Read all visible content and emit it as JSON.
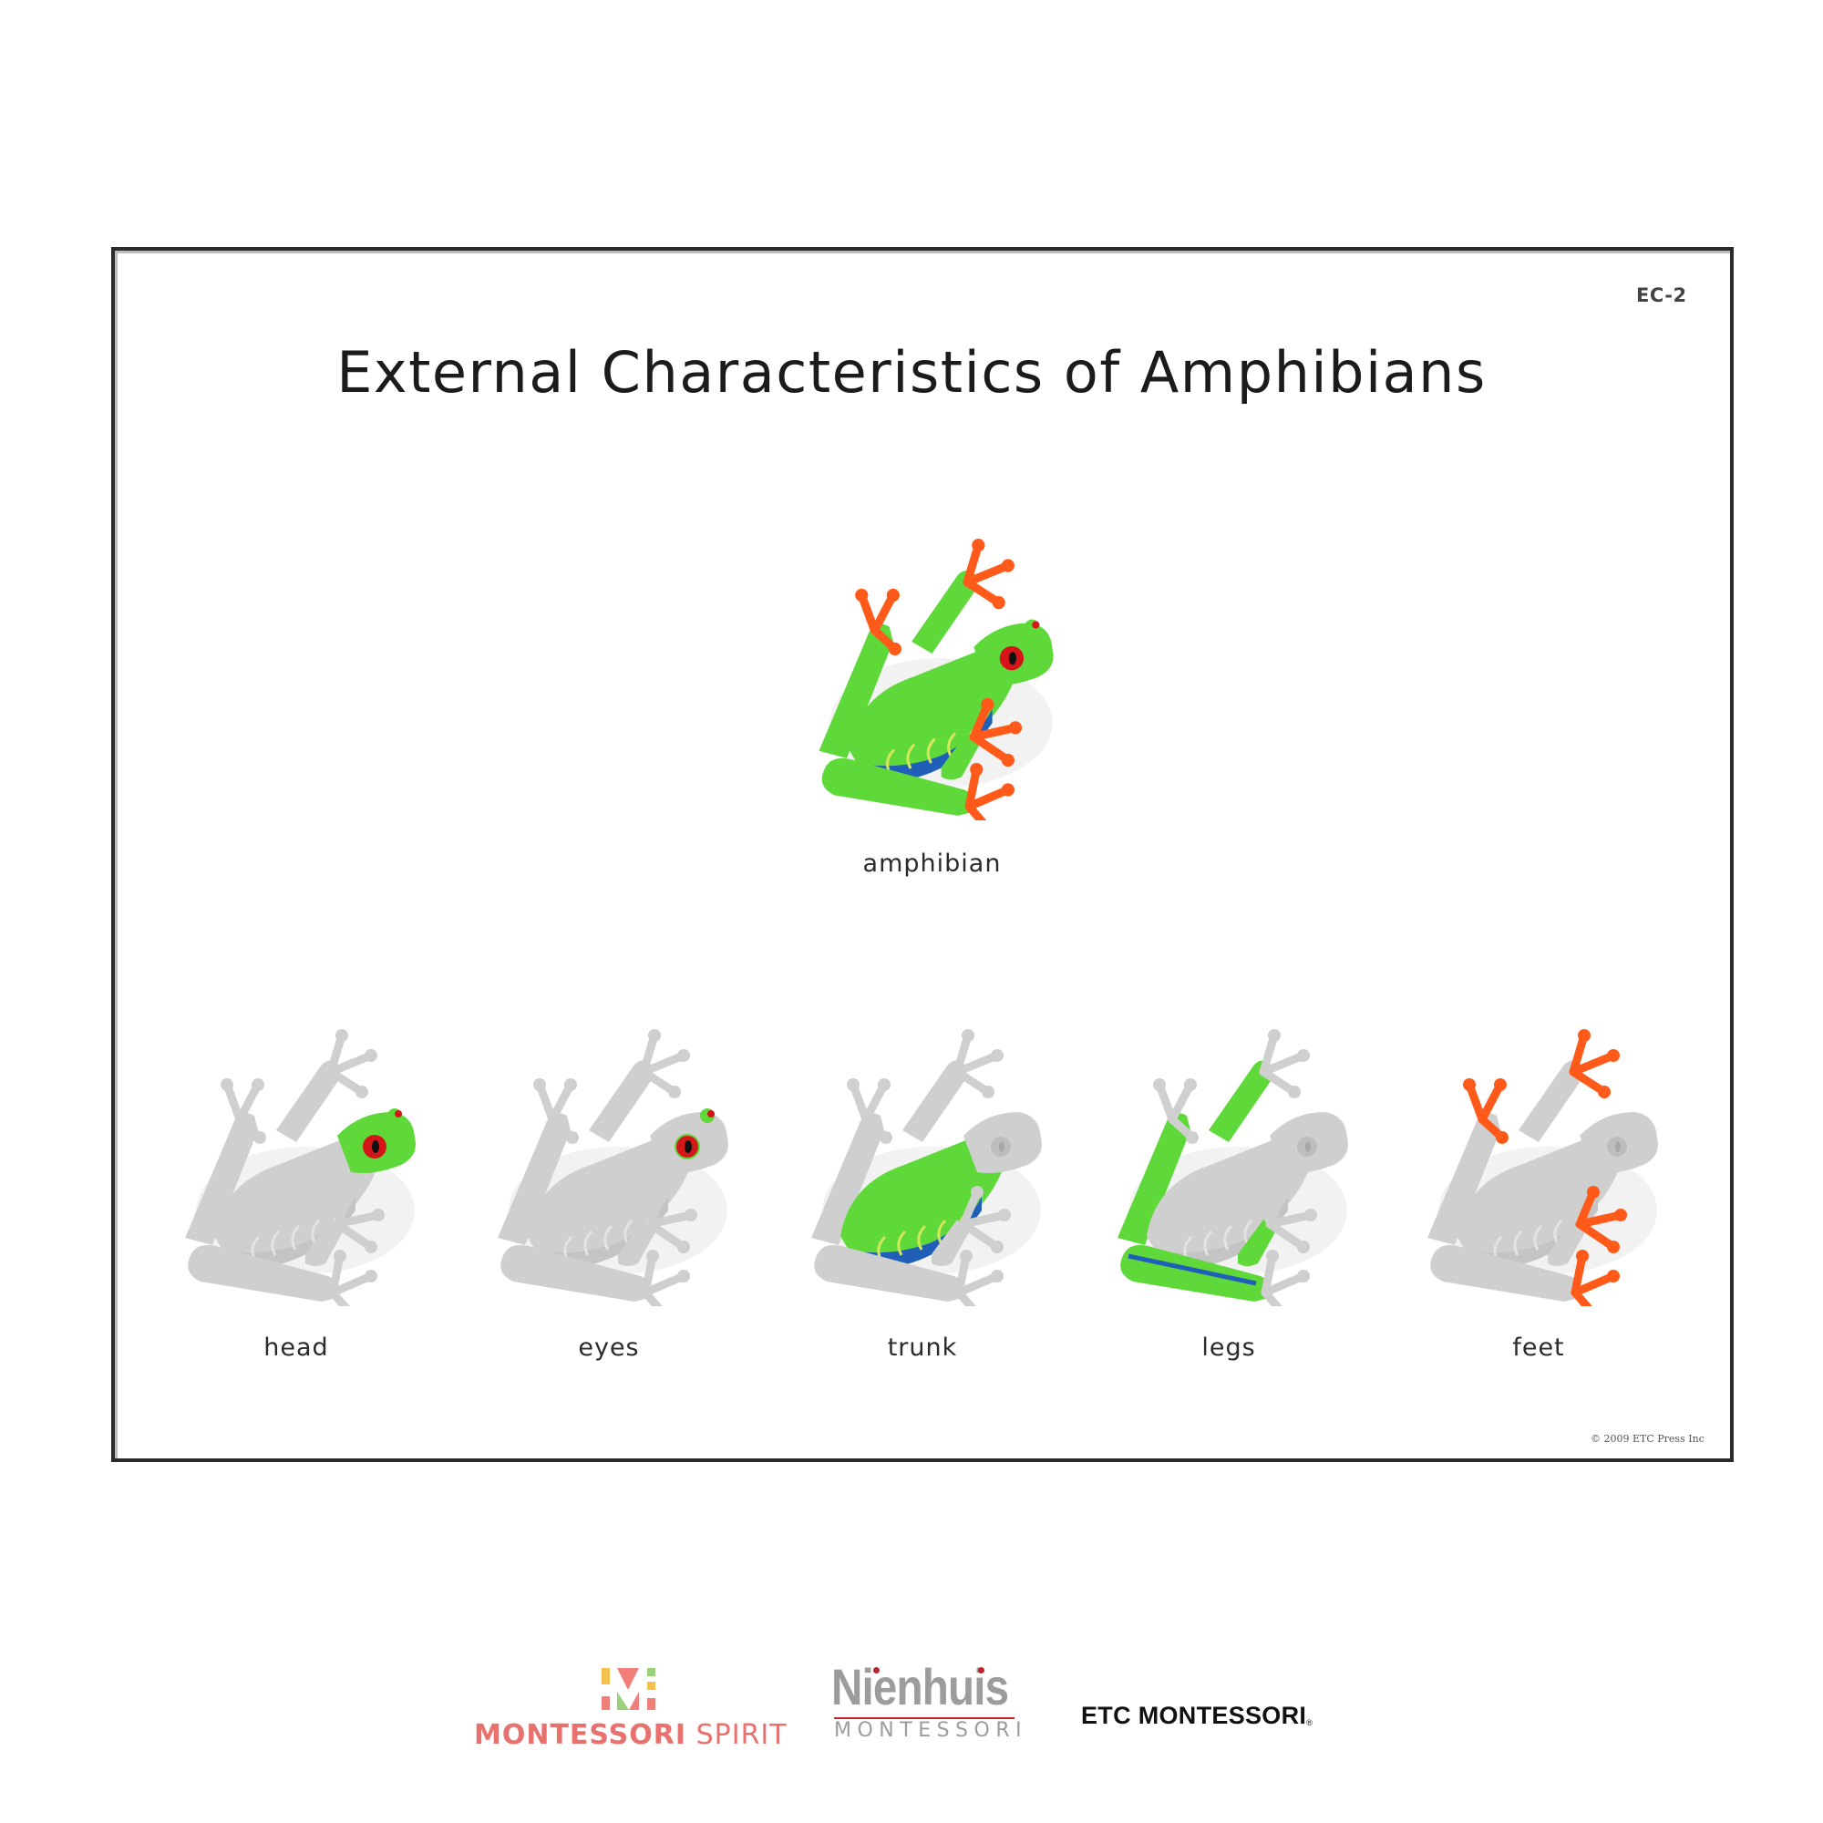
{
  "card": {
    "code": "EC-2",
    "title": "External Characteristics of Amphibians",
    "copyright": "© 2009 ETC Press Inc",
    "main": {
      "label": "amphibian",
      "highlight": "full",
      "image": "red-eyed-tree-frog"
    },
    "parts": [
      {
        "label": "head",
        "highlight": "head"
      },
      {
        "label": "eyes",
        "highlight": "eyes"
      },
      {
        "label": "trunk",
        "highlight": "trunk"
      },
      {
        "label": "legs",
        "highlight": "legs"
      },
      {
        "label": "feet",
        "highlight": "feet"
      }
    ]
  },
  "colors": {
    "frog_green": "#5fd93a",
    "frog_blue": "#1f5fb8",
    "frog_orange": "#ff5a1a",
    "eye_red": "#d4161a",
    "muted_gray": "#cfcfcf",
    "spirit_coral": "#e8706d",
    "nienhuis_gray": "#9c9c9c",
    "nienhuis_red": "#c0222e"
  },
  "logos": {
    "montessori_spirit": {
      "bold": "MONTESSORI",
      "light": " SPIRIT"
    },
    "nienhuis": {
      "name": "Nienhuis",
      "sub": "MONTESSORI"
    },
    "etc": {
      "name": "ETC MONTESSORI",
      "mark": "®"
    }
  }
}
